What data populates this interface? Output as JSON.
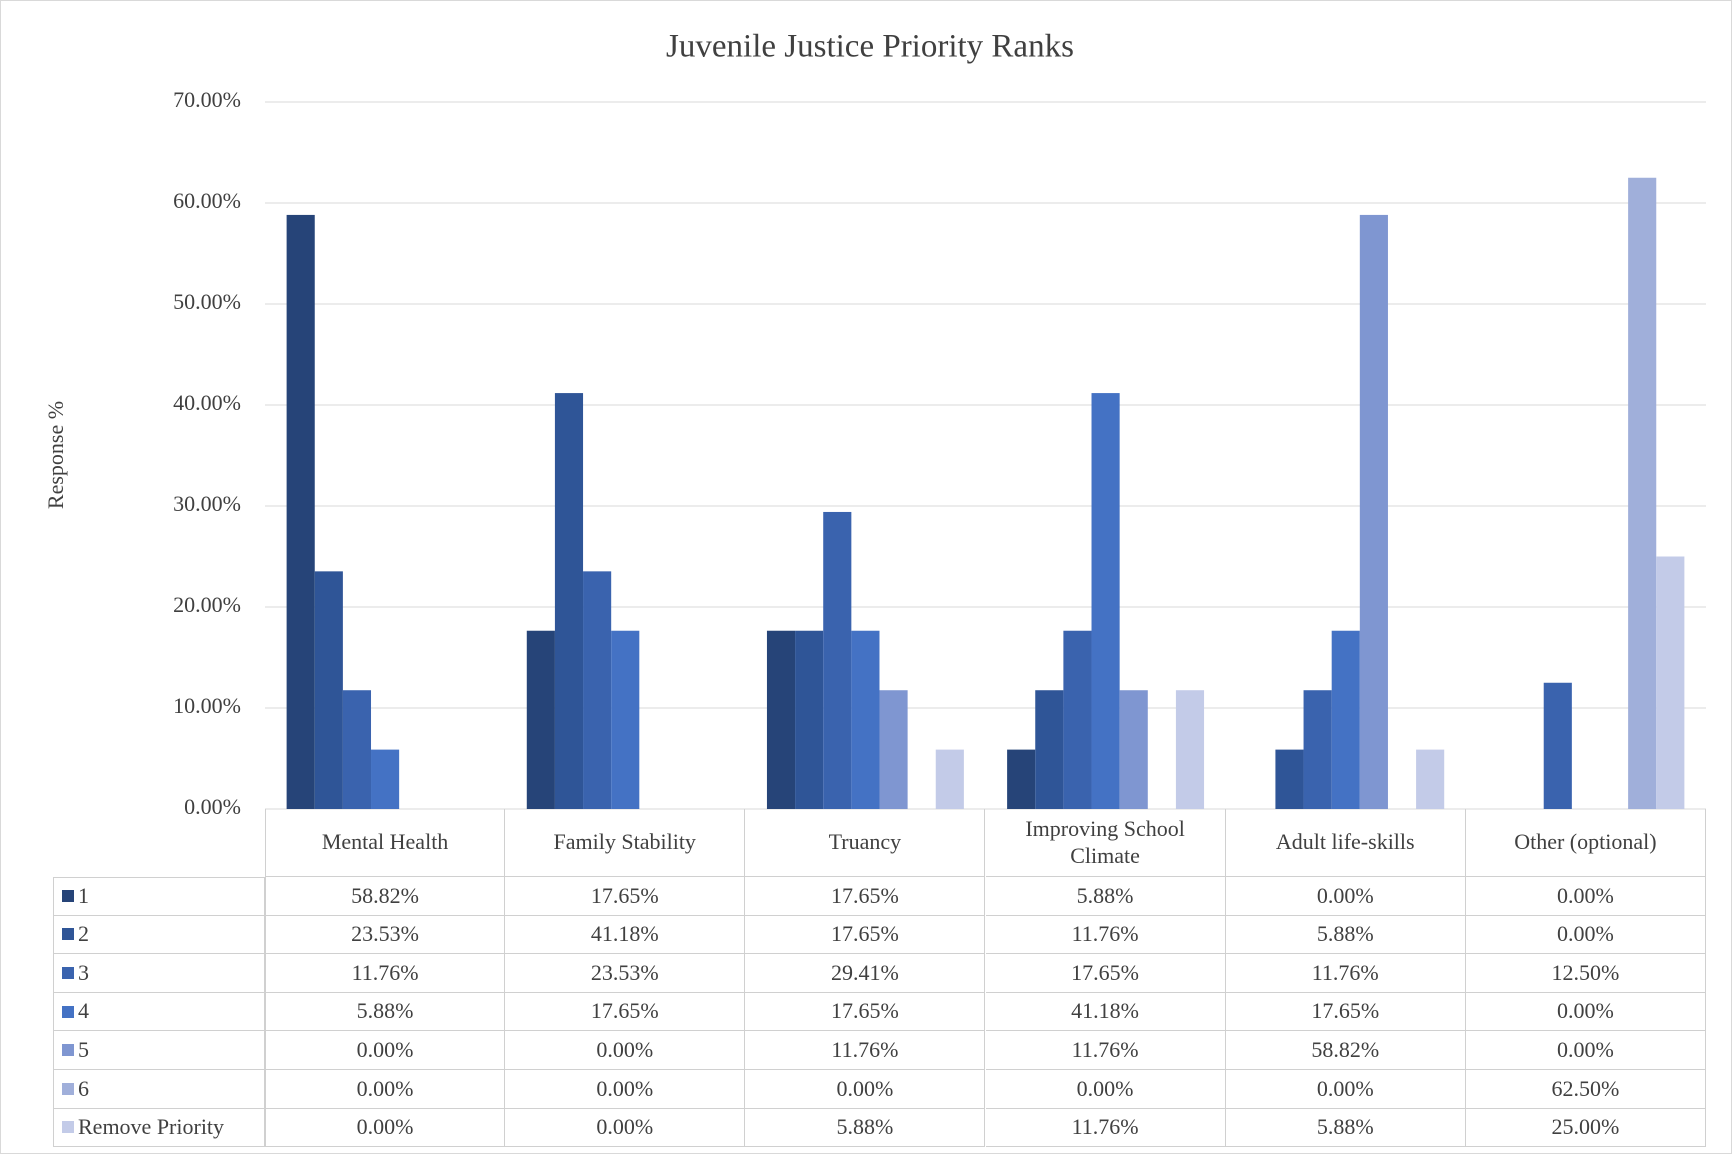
{
  "chart_data": {
    "type": "bar",
    "title": "Juvenile Justice Priority Ranks",
    "ylabel": "Response %",
    "categories": [
      "Mental Health",
      "Family Stability",
      "Truancy",
      "Improving School Climate",
      "Adult life-skills",
      "Other (optional)"
    ],
    "series": [
      {
        "name": "1",
        "color": "#264478",
        "values": [
          58.82,
          17.65,
          17.65,
          5.88,
          0,
          0
        ],
        "value_labels": [
          "58.82%",
          "17.65%",
          "17.65%",
          "5.88%",
          "0.00%",
          "0.00%"
        ]
      },
      {
        "name": "2",
        "color": "#2f5597",
        "values": [
          23.53,
          41.18,
          17.65,
          11.76,
          5.88,
          0
        ],
        "value_labels": [
          "23.53%",
          "41.18%",
          "17.65%",
          "11.76%",
          "5.88%",
          "0.00%"
        ]
      },
      {
        "name": "3",
        "color": "#3a63ae",
        "values": [
          11.76,
          23.53,
          29.41,
          17.65,
          11.76,
          12.5
        ],
        "value_labels": [
          "11.76%",
          "23.53%",
          "29.41%",
          "17.65%",
          "11.76%",
          "12.50%"
        ]
      },
      {
        "name": "4",
        "color": "#4472c4",
        "values": [
          5.88,
          17.65,
          17.65,
          41.18,
          17.65,
          0
        ],
        "value_labels": [
          "5.88%",
          "17.65%",
          "17.65%",
          "41.18%",
          "17.65%",
          "0.00%"
        ]
      },
      {
        "name": "5",
        "color": "#7f96d1",
        "values": [
          0,
          0,
          11.76,
          11.76,
          58.82,
          0
        ],
        "value_labels": [
          "0.00%",
          "0.00%",
          "11.76%",
          "11.76%",
          "58.82%",
          "0.00%"
        ]
      },
      {
        "name": "6",
        "color": "#a0afda",
        "values": [
          0,
          0,
          0,
          0,
          0,
          62.5
        ],
        "value_labels": [
          "0.00%",
          "0.00%",
          "0.00%",
          "0.00%",
          "0.00%",
          "62.50%"
        ]
      },
      {
        "name": "Remove Priority",
        "color": "#c3cbe8",
        "values": [
          0,
          0,
          5.88,
          11.76,
          5.88,
          25
        ],
        "value_labels": [
          "0.00%",
          "0.00%",
          "5.88%",
          "11.76%",
          "5.88%",
          "25.00%"
        ]
      }
    ],
    "ylim": [
      0,
      70
    ],
    "yticks": [
      {
        "value": 0,
        "label": "0.00%"
      },
      {
        "value": 10,
        "label": "10.00%"
      },
      {
        "value": 20,
        "label": "20.00%"
      },
      {
        "value": 30,
        "label": "30.00%"
      },
      {
        "value": 40,
        "label": "40.00%"
      },
      {
        "value": 50,
        "label": "50.00%"
      },
      {
        "value": 60,
        "label": "60.00%"
      },
      {
        "value": 70,
        "label": "70.00%"
      }
    ],
    "grid": true
  }
}
